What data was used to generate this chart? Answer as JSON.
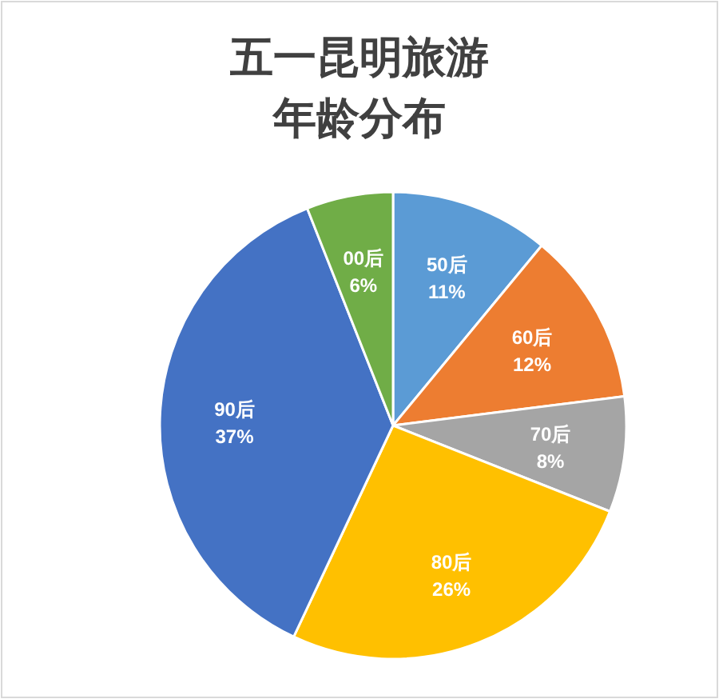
{
  "chart_data": {
    "type": "pie",
    "title": "五一昆明旅游",
    "subtitle": "年龄分布",
    "categories": [
      "50后",
      "60后",
      "70后",
      "80后",
      "90后",
      "00后"
    ],
    "values": [
      11,
      12,
      8,
      26,
      37,
      6
    ],
    "value_labels": [
      "11%",
      "12%",
      "8%",
      "26%",
      "37%",
      "6%"
    ],
    "colors": [
      "#5b9bd5",
      "#ed7d31",
      "#a5a5a5",
      "#ffc000",
      "#4472c4",
      "#70ad47"
    ],
    "legend": false
  }
}
